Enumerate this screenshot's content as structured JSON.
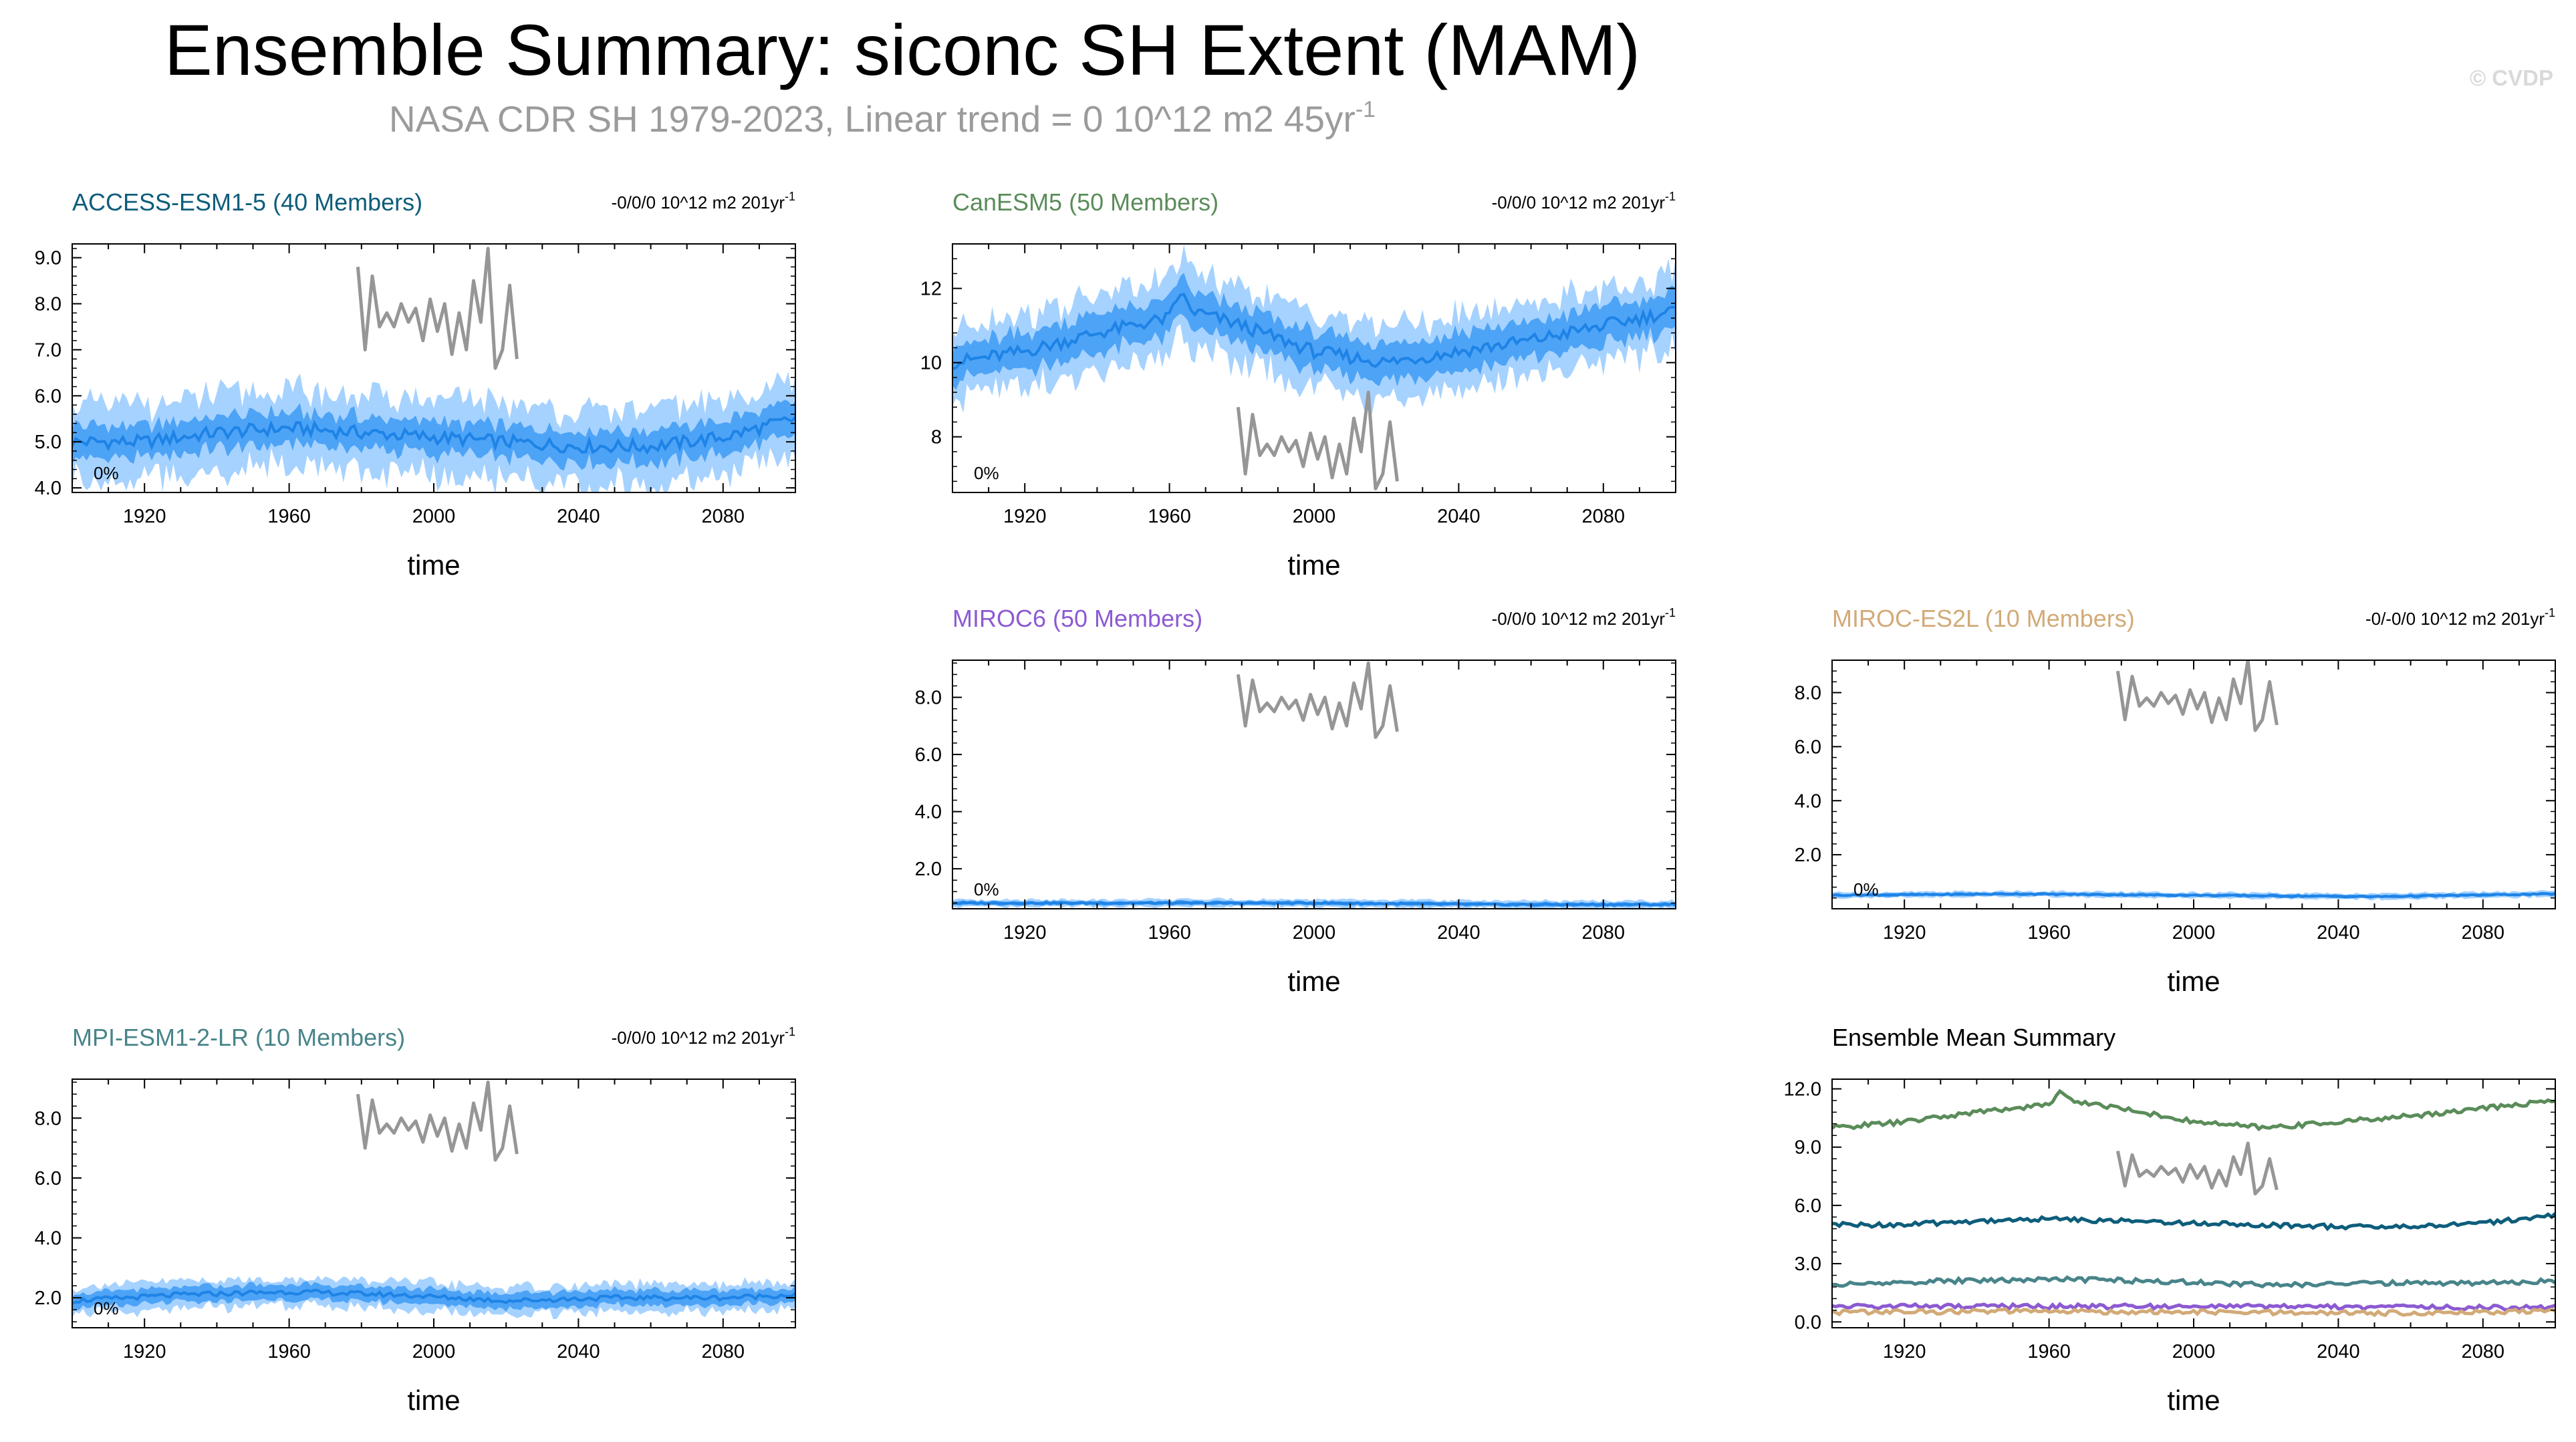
{
  "figure": {
    "title": "Ensemble Summary: siconc SH Extent (MAM)",
    "subtitle": "NASA CDR SH 1979-2023, Linear trend = 0 10^12 m2 45yr",
    "subtitle_sup": "-1",
    "watermark": "© CVDP"
  },
  "colors": {
    "band_outer": "#a6d2ff",
    "band_inner": "#3d9bf5",
    "ens_mean": "#1e83e6",
    "observation": "#969696",
    "ACCESS-ESM1-5": "#0d5d7b",
    "CanESM5": "#5a8c5a",
    "MIROC6": "#8c5ad2",
    "MIROC-ES2L": "#d2aa78",
    "MPI-ESM1-2-LR": "#48848a"
  },
  "chart_data": [
    {
      "id": "access",
      "type": "line",
      "title": "ACCESS-ESM1-5 (40 Members)",
      "title_color": "#0d5d7b",
      "trend_label": "-0/0/0 10^12 m2 201yr",
      "trend_sup": "-1",
      "xlabel": "time",
      "xlim": [
        1900,
        2100
      ],
      "xticks": [
        1920,
        1960,
        2000,
        2040,
        2080
      ],
      "ylim": [
        3.9,
        9.3
      ],
      "yticks": [
        "4.0",
        "5.0",
        "6.0",
        "7.0",
        "8.0",
        "9.0"
      ],
      "pct_label": "0%",
      "ens_mean": {
        "x": [
          1900,
          1920,
          1940,
          1960,
          1980,
          2000,
          2020,
          2040,
          2060,
          2080,
          2100
        ],
        "y": [
          5.0,
          5.0,
          5.2,
          5.3,
          5.2,
          5.1,
          5.0,
          4.9,
          4.9,
          5.1,
          5.5
        ]
      },
      "inner_band_halfwidth": 0.35,
      "outer_band_halfwidth": 0.8,
      "observed_line": {
        "x": [
          1979,
          1981,
          1983,
          1985,
          1987,
          1989,
          1991,
          1993,
          1995,
          1997,
          1999,
          2001,
          2003,
          2005,
          2007,
          2009,
          2011,
          2013,
          2015,
          2017,
          2019,
          2021,
          2023
        ],
        "y": [
          8.8,
          7.0,
          8.6,
          7.5,
          7.8,
          7.5,
          8.0,
          7.6,
          7.9,
          7.2,
          8.1,
          7.4,
          8.0,
          6.9,
          7.8,
          7.0,
          8.5,
          7.6,
          9.2,
          6.6,
          7.0,
          8.4,
          6.8
        ]
      }
    },
    {
      "id": "canesm",
      "type": "line",
      "title": "CanESM5 (50 Members)",
      "title_color": "#5a8c5a",
      "trend_label": "-0/0/0 10^12 m2 201yr",
      "trend_sup": "-1",
      "xlabel": "time",
      "xlim": [
        1900,
        2100
      ],
      "xticks": [
        1920,
        1960,
        2000,
        2040,
        2080
      ],
      "ylim": [
        6.5,
        13.2
      ],
      "yticks": [
        "8",
        "10",
        "12"
      ],
      "pct_label": "0%",
      "ens_mean": {
        "x": [
          1900,
          1920,
          1940,
          1960,
          1963,
          1966,
          1980,
          2000,
          2020,
          2040,
          2060,
          2080,
          2100
        ],
        "y": [
          10.0,
          10.3,
          10.8,
          11.2,
          11.9,
          11.4,
          11.0,
          10.3,
          10.0,
          10.3,
          10.6,
          11.0,
          11.4
        ]
      },
      "inner_band_halfwidth": 0.5,
      "outer_band_halfwidth": 1.0,
      "observed_line": {
        "x": [
          1979,
          1981,
          1983,
          1985,
          1987,
          1989,
          1991,
          1993,
          1995,
          1997,
          1999,
          2001,
          2003,
          2005,
          2007,
          2009,
          2011,
          2013,
          2015,
          2017,
          2019,
          2021,
          2023
        ],
        "y": [
          8.8,
          7.0,
          8.6,
          7.5,
          7.8,
          7.5,
          8.0,
          7.6,
          7.9,
          7.2,
          8.1,
          7.4,
          8.0,
          6.9,
          7.8,
          7.0,
          8.5,
          7.6,
          9.2,
          6.6,
          7.0,
          8.4,
          6.8
        ]
      }
    },
    {
      "id": "miroc6",
      "type": "line",
      "title": "MIROC6 (50 Members)",
      "title_color": "#8c5ad2",
      "trend_label": "-0/0/0 10^12 m2 201yr",
      "trend_sup": "-1",
      "xlabel": "time",
      "xlim": [
        1900,
        2100
      ],
      "xticks": [
        1920,
        1960,
        2000,
        2040,
        2080
      ],
      "ylim": [
        0.6,
        9.3
      ],
      "yticks": [
        "2.0",
        "4.0",
        "6.0",
        "8.0"
      ],
      "pct_label": "0%",
      "ens_mean": {
        "x": [
          1900,
          1950,
          2000,
          2050,
          2100
        ],
        "y": [
          0.8,
          0.8,
          0.8,
          0.75,
          0.75
        ]
      },
      "inner_band_halfwidth": 0.07,
      "outer_band_halfwidth": 0.13,
      "observed_line": {
        "x": [
          1979,
          1981,
          1983,
          1985,
          1987,
          1989,
          1991,
          1993,
          1995,
          1997,
          1999,
          2001,
          2003,
          2005,
          2007,
          2009,
          2011,
          2013,
          2015,
          2017,
          2019,
          2021,
          2023
        ],
        "y": [
          8.8,
          7.0,
          8.6,
          7.5,
          7.8,
          7.5,
          8.0,
          7.6,
          7.9,
          7.2,
          8.1,
          7.4,
          8.0,
          6.9,
          7.8,
          7.0,
          8.5,
          7.6,
          9.2,
          6.6,
          7.0,
          8.4,
          6.8
        ]
      }
    },
    {
      "id": "mirocES2L",
      "type": "line",
      "title": "MIROC-ES2L (10 Members)",
      "title_color": "#d2aa78",
      "trend_label": "-0/-0/0 10^12 m2 201yr",
      "trend_sup": "-1",
      "xlabel": "time",
      "xlim": [
        1900,
        2100
      ],
      "xticks": [
        1920,
        1960,
        2000,
        2040,
        2080
      ],
      "ylim": [
        0.0,
        9.2
      ],
      "yticks": [
        "2.0",
        "4.0",
        "6.0",
        "8.0"
      ],
      "pct_label": "0%",
      "ens_mean": {
        "x": [
          1900,
          1950,
          2000,
          2050,
          2100
        ],
        "y": [
          0.5,
          0.55,
          0.5,
          0.45,
          0.55
        ]
      },
      "inner_band_halfwidth": 0.06,
      "outer_band_halfwidth": 0.11,
      "observed_line": {
        "x": [
          1979,
          1981,
          1983,
          1985,
          1987,
          1989,
          1991,
          1993,
          1995,
          1997,
          1999,
          2001,
          2003,
          2005,
          2007,
          2009,
          2011,
          2013,
          2015,
          2017,
          2019,
          2021,
          2023
        ],
        "y": [
          8.8,
          7.0,
          8.6,
          7.5,
          7.8,
          7.5,
          8.0,
          7.6,
          7.9,
          7.2,
          8.1,
          7.4,
          8.0,
          6.9,
          7.8,
          7.0,
          8.5,
          7.6,
          9.2,
          6.6,
          7.0,
          8.4,
          6.8
        ]
      }
    },
    {
      "id": "mpi",
      "type": "line",
      "title": "MPI-ESM1-2-LR (10 Members)",
      "title_color": "#48848a",
      "trend_label": "-0/0/0 10^12 m2 201yr",
      "trend_sup": "-1",
      "xlabel": "time",
      "xlim": [
        1900,
        2100
      ],
      "xticks": [
        1920,
        1960,
        2000,
        2040,
        2080
      ],
      "ylim": [
        1.0,
        9.3
      ],
      "yticks": [
        "2.0",
        "4.0",
        "6.0",
        "8.0"
      ],
      "pct_label": "0%",
      "ens_mean": {
        "x": [
          1900,
          1930,
          1960,
          1990,
          2020,
          2050,
          2080,
          2100
        ],
        "y": [
          1.9,
          2.1,
          2.2,
          2.1,
          1.9,
          2.0,
          2.0,
          2.1
        ]
      },
      "inner_band_halfwidth": 0.25,
      "outer_band_halfwidth": 0.45,
      "observed_line": {
        "x": [
          1979,
          1981,
          1983,
          1985,
          1987,
          1989,
          1991,
          1993,
          1995,
          1997,
          1999,
          2001,
          2003,
          2005,
          2007,
          2009,
          2011,
          2013,
          2015,
          2017,
          2019,
          2021,
          2023
        ],
        "y": [
          8.8,
          7.0,
          8.6,
          7.5,
          7.8,
          7.5,
          8.0,
          7.6,
          7.9,
          7.2,
          8.1,
          7.4,
          8.0,
          6.9,
          7.8,
          7.0,
          8.5,
          7.6,
          9.2,
          6.6,
          7.0,
          8.4,
          6.8
        ]
      }
    },
    {
      "id": "summary",
      "type": "line",
      "title": "Ensemble Mean Summary",
      "title_color": "#000000",
      "xlabel": "time",
      "xlim": [
        1900,
        2100
      ],
      "xticks": [
        1920,
        1960,
        2000,
        2040,
        2080
      ],
      "ylim": [
        -0.3,
        12.5
      ],
      "yticks": [
        "0.0",
        "3.0",
        "6.0",
        "9.0",
        "12.0"
      ],
      "series": [
        {
          "name": "CanESM5",
          "color": "#5a8c5a",
          "x": [
            1900,
            1920,
            1940,
            1960,
            1963,
            1966,
            1980,
            2000,
            2020,
            2040,
            2060,
            2080,
            2100
          ],
          "y": [
            10.0,
            10.3,
            10.8,
            11.2,
            11.9,
            11.4,
            11.0,
            10.3,
            10.0,
            10.3,
            10.6,
            11.0,
            11.4
          ]
        },
        {
          "name": "ACCESS-ESM1-5",
          "color": "#0d5d7b",
          "x": [
            1900,
            1920,
            1940,
            1960,
            1980,
            2000,
            2020,
            2040,
            2060,
            2080,
            2100
          ],
          "y": [
            5.0,
            5.0,
            5.2,
            5.3,
            5.2,
            5.1,
            5.0,
            4.9,
            4.9,
            5.1,
            5.5
          ]
        },
        {
          "name": "MPI-ESM1-2-LR",
          "color": "#48848a",
          "x": [
            1900,
            1930,
            1960,
            1990,
            2020,
            2050,
            2080,
            2100
          ],
          "y": [
            1.9,
            2.1,
            2.2,
            2.1,
            1.9,
            2.0,
            2.0,
            2.1
          ]
        },
        {
          "name": "MIROC6",
          "color": "#8c5ad2",
          "x": [
            1900,
            1950,
            2000,
            2050,
            2100
          ],
          "y": [
            0.8,
            0.8,
            0.8,
            0.75,
            0.75
          ]
        },
        {
          "name": "MIROC-ES2L",
          "color": "#d2aa78",
          "x": [
            1900,
            1950,
            2000,
            2050,
            2100
          ],
          "y": [
            0.5,
            0.55,
            0.5,
            0.45,
            0.55
          ]
        }
      ],
      "observed_line": {
        "x": [
          1979,
          1981,
          1983,
          1985,
          1987,
          1989,
          1991,
          1993,
          1995,
          1997,
          1999,
          2001,
          2003,
          2005,
          2007,
          2009,
          2011,
          2013,
          2015,
          2017,
          2019,
          2021,
          2023
        ],
        "y": [
          8.8,
          7.0,
          8.6,
          7.5,
          7.8,
          7.5,
          8.0,
          7.6,
          7.9,
          7.2,
          8.1,
          7.4,
          8.0,
          6.9,
          7.8,
          7.0,
          8.5,
          7.6,
          9.2,
          6.6,
          7.0,
          8.4,
          6.8
        ]
      }
    }
  ]
}
